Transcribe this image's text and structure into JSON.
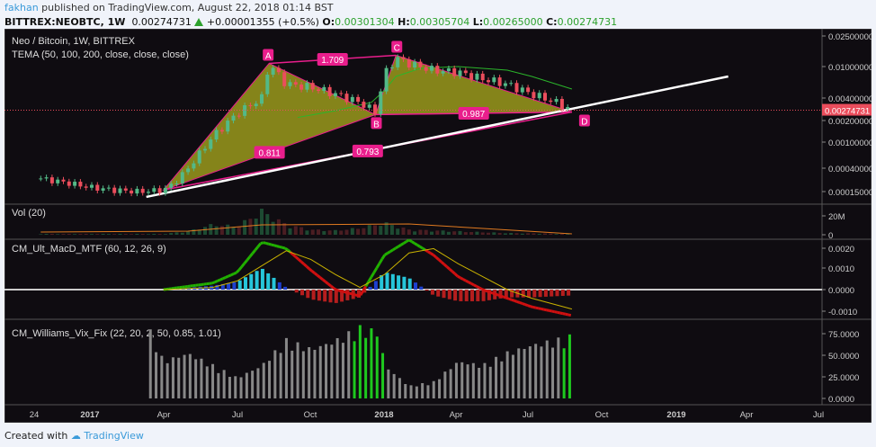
{
  "header": {
    "user": "fakhan",
    "published": "published on TradingView.com, August 22, 2018 01:14 BST",
    "symbol": "BITTREX:NEOBTC, 1W",
    "last": "0.00274731",
    "change": "+0.00001355 (+0.5%)",
    "o_label": "O:",
    "o": "0.00301304",
    "h_label": "H:",
    "h": "0.00305704",
    "l_label": "L:",
    "l": "0.00265000",
    "c_label": "C:",
    "c": "0.00274731"
  },
  "footer": {
    "created": "Created with",
    "brand": "TradingView"
  },
  "colors": {
    "bg": "#0f0c11",
    "up": "#53b987",
    "down": "#eb4d5c",
    "pattern": "#e91e8c",
    "pattern_fill": "#9a9a1c",
    "tema": "#2bb52b",
    "macd": "#21b000",
    "signal": "#c9b200",
    "last_price": "#eb4d5c"
  },
  "chart_data": [
    {
      "type": "candlestick",
      "title": "Neo / Bitcoin, 1W, BITTREX",
      "indicator": "TEMA (50, 100, 200, close, close, close)",
      "scale": "log",
      "y_ticks": [
        "0.02500000",
        "0.01000000",
        "0.00400000",
        "0.00200000",
        "0.00100000",
        "0.00040000",
        "0.00015000"
      ],
      "last_price_label": "0.00274731",
      "x_ticks": [
        "24",
        "2017",
        "Apr",
        "Jul",
        "Oct",
        "2018",
        "Apr",
        "Jul",
        "Oct",
        "2019",
        "Apr",
        "Jul"
      ],
      "approx_close": [
        [
          "2016-11",
          0.00026
        ],
        [
          "2016-12",
          0.00022
        ],
        [
          "2017-01",
          0.00018
        ],
        [
          "2017-02",
          0.00016
        ],
        [
          "2017-03",
          0.00015
        ],
        [
          "2017-04",
          0.00016
        ],
        [
          "2017-04-15",
          0.00022
        ],
        [
          "2017-05",
          0.0004
        ],
        [
          "2017-06",
          0.0012
        ],
        [
          "2017-07",
          0.0025
        ],
        [
          "2017-08",
          0.004
        ],
        [
          "2017-08-10",
          0.011
        ],
        [
          "2017-09",
          0.006
        ],
        [
          "2017-10",
          0.0055
        ],
        [
          "2017-11",
          0.0045
        ],
        [
          "2017-12",
          0.0035
        ],
        [
          "2017-12-20",
          0.0026
        ],
        [
          "2018-01",
          0.008
        ],
        [
          "2018-01-15",
          0.013
        ],
        [
          "2018-02",
          0.011
        ],
        [
          "2018-03",
          0.009
        ],
        [
          "2018-04",
          0.0085
        ],
        [
          "2018-05",
          0.007
        ],
        [
          "2018-06",
          0.006
        ],
        [
          "2018-07",
          0.0045
        ],
        [
          "2018-08",
          0.0035
        ],
        [
          "2018-08-20",
          0.00275
        ]
      ],
      "tema": [
        [
          "2017-09-15",
          0.0022
        ],
        [
          "2017-11",
          0.0027
        ],
        [
          "2017-12-15",
          0.0035
        ],
        [
          "2018-01",
          0.005
        ],
        [
          "2018-01-15",
          0.0075
        ],
        [
          "2018-02-15",
          0.0095
        ],
        [
          "2018-04",
          0.01
        ],
        [
          "2018-05",
          0.0095
        ],
        [
          "2018-06",
          0.009
        ],
        [
          "2018-07",
          0.0075
        ],
        [
          "2018-08-20",
          0.0052
        ]
      ],
      "pattern": {
        "points": {
          "X": [
            "2017-04-01",
            0.00016
          ],
          "A": [
            "2017-08-10",
            0.011
          ],
          "B": [
            "2017-12-20",
            0.0024
          ],
          "C": [
            "2018-01-15",
            0.014
          ],
          "D": [
            "2018-08-20",
            0.0026
          ]
        },
        "labels": [
          "A",
          "B",
          "C",
          "D"
        ],
        "ratios": {
          "XB": "0.811",
          "AC": "1.709",
          "XD": "0.793",
          "BD": "0.987"
        }
      },
      "trendline": [
        [
          "2017-03-10",
          0.00012
        ],
        [
          "2019-03",
          0.0075
        ]
      ]
    },
    {
      "type": "bar",
      "title": "Vol (20)",
      "y_ticks": [
        "20M",
        "0"
      ],
      "approx_volume_M": [
        [
          "2016-11",
          1
        ],
        [
          "2017-04",
          1
        ],
        [
          "2017-05",
          4
        ],
        [
          "2017-06",
          12
        ],
        [
          "2017-07",
          10
        ],
        [
          "2017-08",
          28
        ],
        [
          "2017-09",
          12
        ],
        [
          "2017-10",
          6
        ],
        [
          "2017-11",
          5
        ],
        [
          "2017-12",
          8
        ],
        [
          "2018-01",
          14
        ],
        [
          "2018-02",
          6
        ],
        [
          "2018-04",
          4
        ],
        [
          "2018-06",
          2
        ],
        [
          "2018-08-20",
          1
        ]
      ]
    },
    {
      "type": "line",
      "title": "CM_Ult_MacD_MTF (60, 12, 26, 9)",
      "y_ticks": [
        "0.0020",
        "0.0010",
        "0.0000",
        "-0.0010"
      ],
      "macd": [
        [
          "2017-04",
          0
        ],
        [
          "2017-06",
          0.0003
        ],
        [
          "2017-07",
          0.0008
        ],
        [
          "2017-08",
          0.0022
        ],
        [
          "2017-09",
          0.0019
        ],
        [
          "2017-10",
          0.0009
        ],
        [
          "2017-11",
          0.0
        ],
        [
          "2017-12",
          -0.0003
        ],
        [
          "2018-01",
          0.0016
        ],
        [
          "2018-02",
          0.0023
        ],
        [
          "2018-03",
          0.0016
        ],
        [
          "2018-04",
          0.0006
        ],
        [
          "2018-05",
          0.0
        ],
        [
          "2018-06",
          -0.0004
        ],
        [
          "2018-07",
          -0.0008
        ],
        [
          "2018-08-20",
          -0.0012
        ]
      ],
      "signal": [
        [
          "2017-04",
          0
        ],
        [
          "2017-06",
          0.0001
        ],
        [
          "2017-07",
          0.0004
        ],
        [
          "2017-08",
          0.0011
        ],
        [
          "2017-09",
          0.0018
        ],
        [
          "2017-10",
          0.0014
        ],
        [
          "2017-11",
          0.0007
        ],
        [
          "2017-12",
          0.0001
        ],
        [
          "2018-01",
          0.0007
        ],
        [
          "2018-02",
          0.0017
        ],
        [
          "2018-03",
          0.0019
        ],
        [
          "2018-04",
          0.0012
        ],
        [
          "2018-05",
          0.0006
        ],
        [
          "2018-06",
          0.0
        ],
        [
          "2018-07",
          -0.0004
        ],
        [
          "2018-08-20",
          -0.0009
        ]
      ]
    },
    {
      "type": "bar",
      "title": "CM_Williams_Vix_Fix (22, 20, 2, 50, 0.85, 1.01)",
      "y_ticks": [
        "75.0000",
        "50.0000",
        "25.0000",
        "0.0000"
      ],
      "approx_values": [
        [
          "2017-03-15",
          80
        ],
        [
          "2017-04",
          45
        ],
        [
          "2017-05",
          55
        ],
        [
          "2017-06",
          40
        ],
        [
          "2017-07",
          25
        ],
        [
          "2017-08",
          40
        ],
        [
          "2017-09",
          70
        ],
        [
          "2017-10",
          60
        ],
        [
          "2017-11",
          70
        ],
        [
          "2017-12",
          85
        ],
        [
          "2017-12-25",
          80
        ],
        [
          "2018-01",
          40
        ],
        [
          "2018-02",
          15
        ],
        [
          "2018-03",
          20
        ],
        [
          "2018-04",
          45
        ],
        [
          "2018-05",
          40
        ],
        [
          "2018-06",
          55
        ],
        [
          "2018-07",
          65
        ],
        [
          "2018-08",
          70
        ],
        [
          "2018-08-20",
          75
        ]
      ],
      "highlighted_green": [
        [
          "2017-11-20",
          "2017-12-31"
        ],
        [
          "2018-08-05",
          "2018-08-20"
        ]
      ]
    }
  ]
}
